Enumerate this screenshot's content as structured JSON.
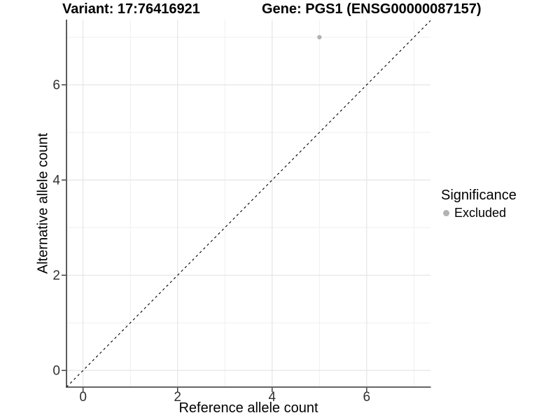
{
  "header": {
    "variant_title": "Variant: 17:76416921",
    "gene_title": "Gene: PGS1 (ENSG00000087157)"
  },
  "chart_data": {
    "type": "scatter",
    "xlabel": "Reference allele count",
    "ylabel": "Alternative allele count",
    "xlim": [
      -0.35,
      7.35
    ],
    "ylim": [
      -0.35,
      7.37
    ],
    "x_ticks": [
      0,
      2,
      4,
      6
    ],
    "y_ticks": [
      0,
      2,
      4,
      6
    ],
    "x_minor": [
      1,
      3,
      5,
      7
    ],
    "y_minor": [
      1,
      3,
      5,
      7
    ],
    "grid": true,
    "points": [
      {
        "x": 5,
        "y": 7,
        "series": "Excluded"
      }
    ],
    "reference_line": {
      "type": "identity",
      "slope": 1,
      "intercept": 0,
      "style": "dashed"
    },
    "legend": {
      "title": "Significance",
      "position": "right",
      "items": [
        {
          "label": "Excluded",
          "color": "#b3b3b3"
        }
      ]
    }
  },
  "colors": {
    "background": "#ffffff",
    "grid_major": "#e3e3e3",
    "grid_minor": "#eeeeee",
    "axis_line": "#333333",
    "tick_mark": "#333333",
    "tick_text": "#303030",
    "text": "#000000",
    "point": "#b3b3b3",
    "reference_line": "#000000"
  }
}
